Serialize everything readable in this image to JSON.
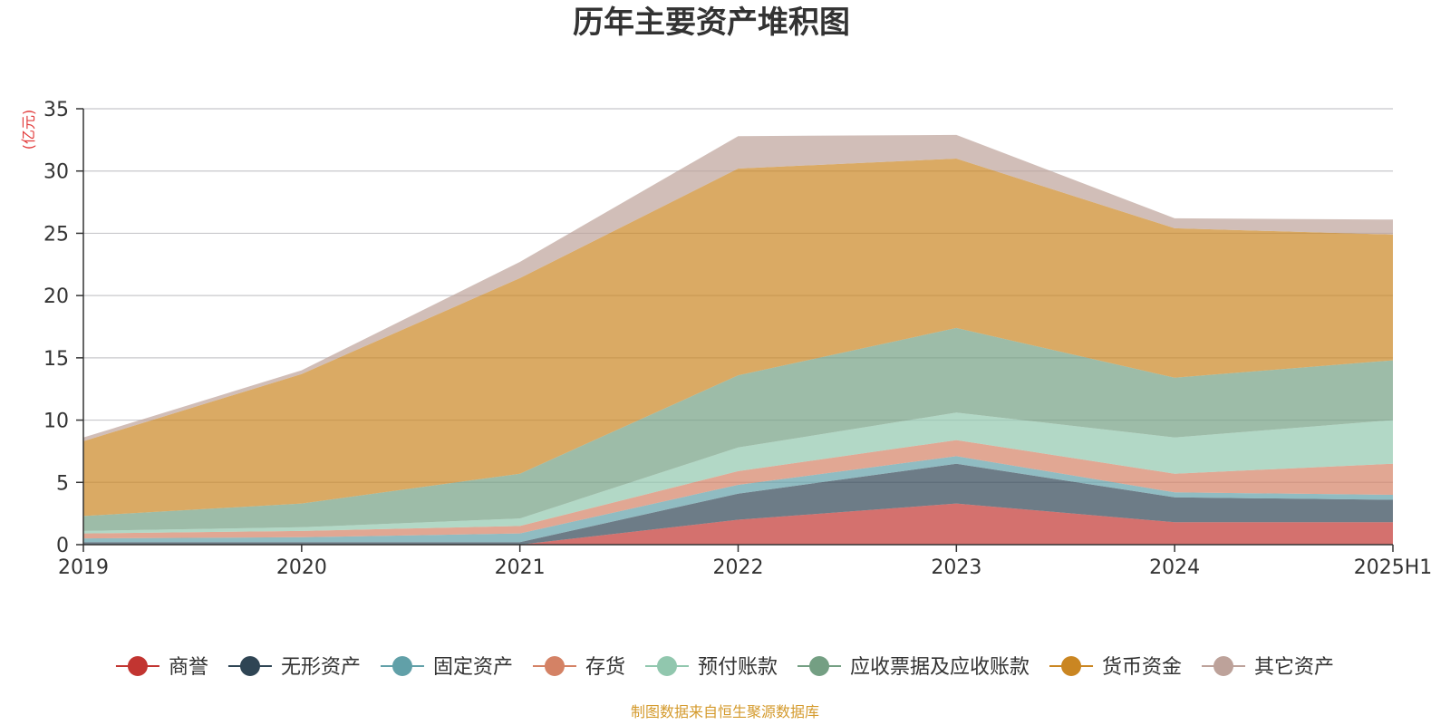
{
  "chart_data": {
    "type": "area",
    "stacked": true,
    "title": "历年主要资产堆积图",
    "unit": "(亿元)",
    "source": "制图数据来自恒生聚源数据库",
    "categories": [
      "2019",
      "2020",
      "2021",
      "2022",
      "2023",
      "2024",
      "2025H1"
    ],
    "ylim": [
      0,
      35
    ],
    "yticks": [
      0,
      5,
      10,
      15,
      20,
      25,
      30,
      35
    ],
    "grid": true,
    "legend_position": "bottom",
    "series": [
      {
        "name": "商誉",
        "color": "#c23531",
        "values": [
          0,
          0,
          0,
          2.0,
          3.3,
          1.8,
          1.8
        ]
      },
      {
        "name": "无形资产",
        "color": "#2f4554",
        "values": [
          0.2,
          0.2,
          0.2,
          2.1,
          3.2,
          2.0,
          1.8
        ]
      },
      {
        "name": "固定资产",
        "color": "#61a0a8",
        "values": [
          0.3,
          0.4,
          0.7,
          0.7,
          0.6,
          0.4,
          0.4
        ]
      },
      {
        "name": "存货",
        "color": "#d48265",
        "values": [
          0.4,
          0.5,
          0.6,
          1.1,
          1.3,
          1.5,
          2.5
        ]
      },
      {
        "name": "预付账款",
        "color": "#91c7ae",
        "values": [
          0.2,
          0.3,
          0.6,
          1.9,
          2.2,
          2.9,
          3.5
        ]
      },
      {
        "name": "应收票据及应收账款",
        "color": "#749f83",
        "values": [
          1.2,
          1.9,
          3.6,
          5.8,
          6.8,
          4.8,
          4.8
        ]
      },
      {
        "name": "货币资金",
        "color": "#ca8622",
        "values": [
          6.0,
          10.4,
          15.7,
          16.6,
          13.6,
          12.0,
          10.1
        ]
      },
      {
        "name": "其它资产",
        "color": "#bda29a",
        "values": [
          0.3,
          0.3,
          1.3,
          2.6,
          1.9,
          0.8,
          1.2
        ]
      }
    ]
  }
}
